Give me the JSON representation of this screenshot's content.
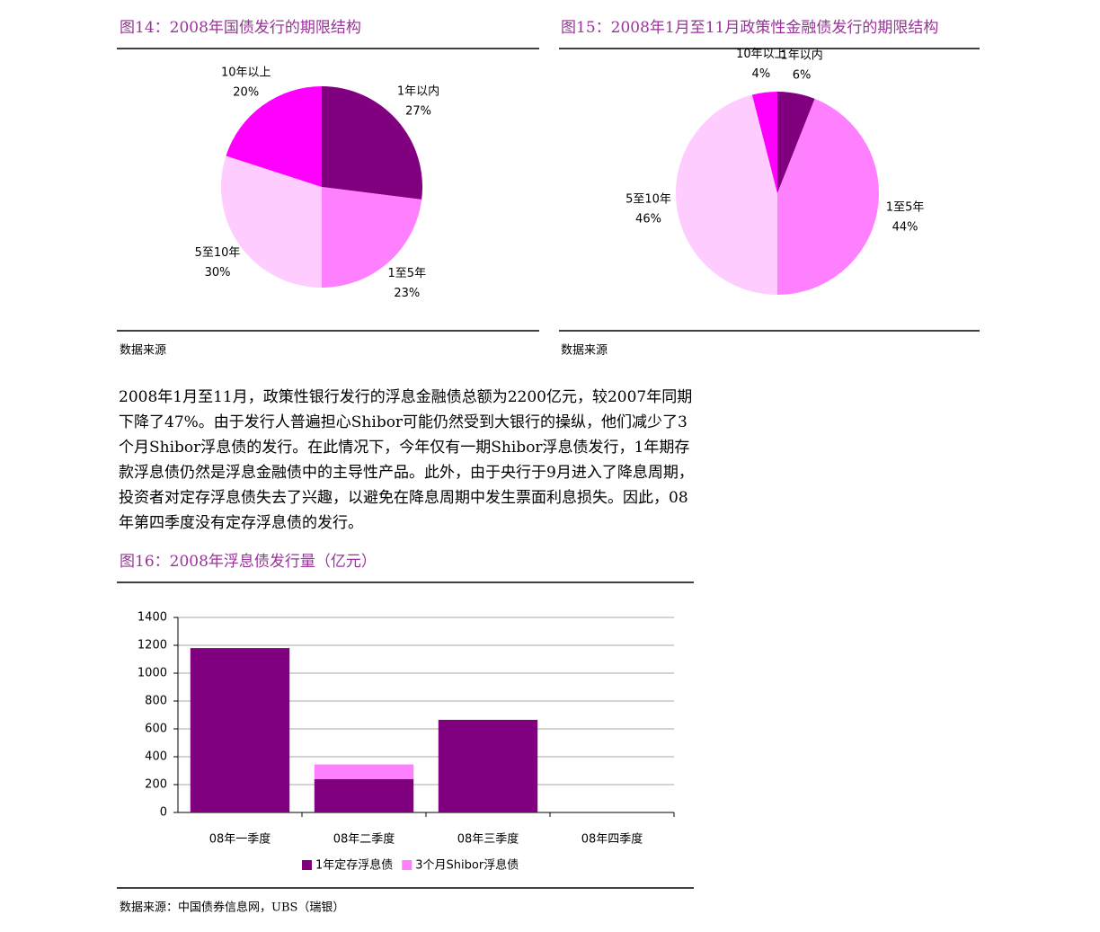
{
  "chart_data": [
    {
      "type": "pie",
      "title": "图14：2008年国债发行的期限结构",
      "source": "数据来源",
      "categories": [
        "1年以内",
        "1至5年",
        "5至10年",
        "10年以上"
      ],
      "values": [
        27,
        23,
        30,
        20
      ],
      "value_labels": [
        "27%",
        "23%",
        "30%",
        "20%"
      ],
      "colors": [
        "#800080",
        "#ff80ff",
        "#ffccff",
        "#ff00ff"
      ]
    },
    {
      "type": "pie",
      "title": "图15：2008年1月至11月政策性金融债发行的期限结构",
      "source": "数据来源",
      "categories": [
        "1年以内",
        "1至5年",
        "5至10年",
        "10年以上"
      ],
      "values": [
        6,
        44,
        46,
        4
      ],
      "value_labels": [
        "6%",
        "44%",
        "46%",
        "4%"
      ],
      "colors": [
        "#800080",
        "#ff80ff",
        "#ffccff",
        "#ff00ff"
      ]
    },
    {
      "type": "bar",
      "title": "图16：2008年浮息债发行量（亿元）",
      "source": "数据来源：中国债券信息网，UBS（瑞银）",
      "stacked": true,
      "grid": true,
      "categories": [
        "08年一季度",
        "08年二季度",
        "08年三季度",
        "08年四季度"
      ],
      "series": [
        {
          "name": "1年定存浮息债",
          "color": "#800080",
          "values": [
            1180,
            240,
            665,
            0
          ]
        },
        {
          "name": "3个月Shibor浮息债",
          "color": "#ff80ff",
          "values": [
            0,
            105,
            0,
            0
          ]
        }
      ],
      "ylim": [
        0,
        1400
      ],
      "yticks": [
        0,
        200,
        400,
        600,
        800,
        1000,
        1200,
        1400
      ]
    }
  ],
  "body": {
    "paragraph": "2008年1月至11月，政策性银行发行的浮息金融债总额为2200亿元，较2007年同期下降了47%。由于发行人普遍担心Shibor可能仍然受到大银行的操纵，他们减少了3个月Shibor浮息债的发行。在此情况下，今年仅有一期Shibor浮息债发行，1年期存款浮息债仍然是浮息金融债中的主导性产品。此外，由于央行于9月进入了降息周期，投资者对定存浮息债失去了兴趣，以避免在降息周期中发生票面利息损失。因此，08年第四季度没有定存浮息债的发行。"
  }
}
